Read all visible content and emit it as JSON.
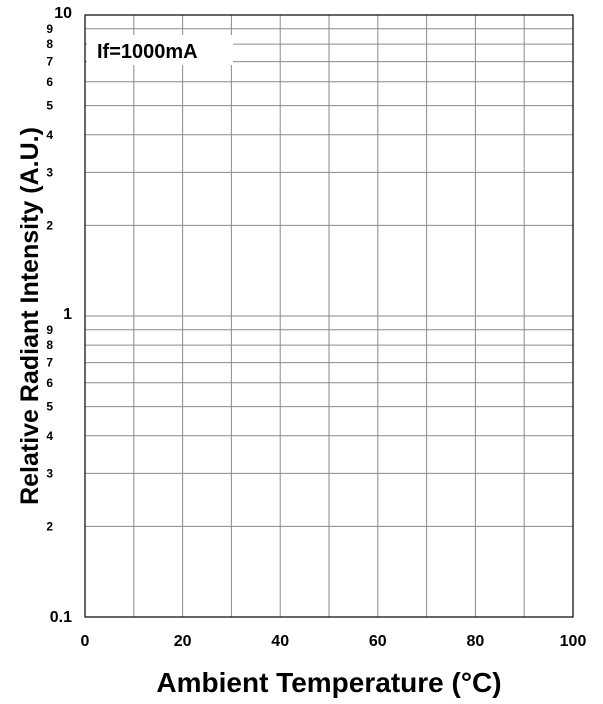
{
  "chart_data": {
    "type": "line",
    "xlabel": "Ambient Temperature (°C)",
    "ylabel": "Relative Radiant Intensity (A.U.)",
    "annotation": "If=1000mA",
    "xlim": [
      0,
      100
    ],
    "ylim": [
      0.1,
      10
    ],
    "yscale": "log",
    "grid": true,
    "x_ticks": [
      {
        "value": 0,
        "label": "0"
      },
      {
        "value": 20,
        "label": "20"
      },
      {
        "value": 40,
        "label": "40"
      },
      {
        "value": 60,
        "label": "60"
      },
      {
        "value": 80,
        "label": "80"
      },
      {
        "value": 100,
        "label": "100"
      }
    ],
    "x_minor_gridlines": [
      10,
      30,
      50,
      70,
      90
    ],
    "y_major_ticks": [
      {
        "value": 0.1,
        "label": "0.1"
      },
      {
        "value": 1,
        "label": "1"
      },
      {
        "value": 10,
        "label": "10"
      }
    ],
    "y_minor_ticks": [
      {
        "value": 0.2,
        "label": "2"
      },
      {
        "value": 0.3,
        "label": "3"
      },
      {
        "value": 0.4,
        "label": "4"
      },
      {
        "value": 0.5,
        "label": "5"
      },
      {
        "value": 0.6,
        "label": "6"
      },
      {
        "value": 0.7,
        "label": "7"
      },
      {
        "value": 0.8,
        "label": "8"
      },
      {
        "value": 0.9,
        "label": "9"
      },
      {
        "value": 2,
        "label": "2"
      },
      {
        "value": 3,
        "label": "3"
      },
      {
        "value": 4,
        "label": "4"
      },
      {
        "value": 5,
        "label": "5"
      },
      {
        "value": 6,
        "label": "6"
      },
      {
        "value": 7,
        "label": "7"
      },
      {
        "value": 8,
        "label": "8"
      },
      {
        "value": 9,
        "label": "9"
      }
    ],
    "series": []
  }
}
